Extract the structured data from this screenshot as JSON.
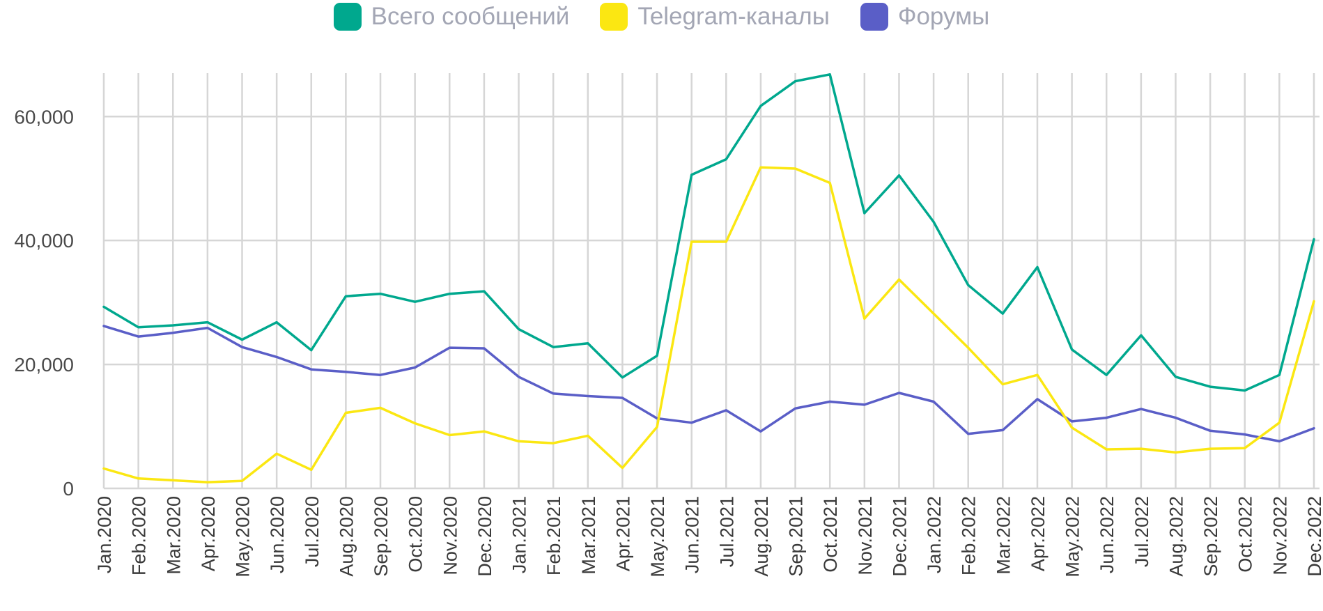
{
  "chart_data": {
    "type": "line",
    "title": "",
    "xlabel": "",
    "ylabel": "",
    "ylim": [
      0,
      67000
    ],
    "yticks": [
      0,
      20000,
      40000,
      60000
    ],
    "ytick_labels": [
      "0",
      "20,000",
      "40,000",
      "60,000"
    ],
    "grid": true,
    "legend_position": "top-center",
    "categories": [
      "Jan.2020",
      "Feb.2020",
      "Mar.2020",
      "Apr.2020",
      "May.2020",
      "Jun.2020",
      "Jul.2020",
      "Aug.2020",
      "Sep.2020",
      "Oct.2020",
      "Nov.2020",
      "Dec.2020",
      "Jan.2021",
      "Feb.2021",
      "Mar.2021",
      "Apr.2021",
      "May.2021",
      "Jun.2021",
      "Jul.2021",
      "Aug.2021",
      "Sep.2021",
      "Oct.2021",
      "Nov.2021",
      "Dec.2021",
      "Jan.2022",
      "Feb.2022",
      "Mar.2022",
      "Apr.2022",
      "May.2022",
      "Jun.2022",
      "Jul.2022",
      "Aug.2022",
      "Sep.2022",
      "Oct.2022",
      "Nov.2022",
      "Dec.2022"
    ],
    "series": [
      {
        "name": "Всего сообщений",
        "color": "#00a88e",
        "values": [
          29300,
          26000,
          26300,
          26800,
          24000,
          26800,
          22300,
          31000,
          31400,
          30100,
          31400,
          31800,
          25700,
          22800,
          23400,
          17900,
          21400,
          50600,
          53100,
          61700,
          65700,
          66800,
          44400,
          50500,
          43000,
          32800,
          28200,
          35700,
          22400,
          18300,
          24700,
          18000,
          16400,
          15800,
          18300,
          40200
        ]
      },
      {
        "name": "Telegram-каналы",
        "color": "#fbe712",
        "values": [
          3200,
          1600,
          1300,
          1000,
          1200,
          5600,
          3000,
          12200,
          13000,
          10500,
          8600,
          9200,
          7600,
          7300,
          8500,
          3300,
          9900,
          39800,
          39800,
          51800,
          51600,
          49300,
          27400,
          33700,
          28200,
          22700,
          16800,
          18300,
          9800,
          6300,
          6400,
          5800,
          6400,
          6500,
          10600,
          30200
        ]
      },
      {
        "name": "Форумы",
        "color": "#5a5ec7",
        "values": [
          26200,
          24500,
          25100,
          25900,
          22800,
          21200,
          19200,
          18800,
          18300,
          19500,
          22700,
          22600,
          18000,
          15300,
          14900,
          14600,
          11300,
          10600,
          12600,
          9200,
          12900,
          14000,
          13500,
          15400,
          14000,
          8800,
          9400,
          14400,
          10800,
          11400,
          12800,
          11400,
          9300,
          8700,
          7600,
          9700
        ]
      }
    ]
  }
}
